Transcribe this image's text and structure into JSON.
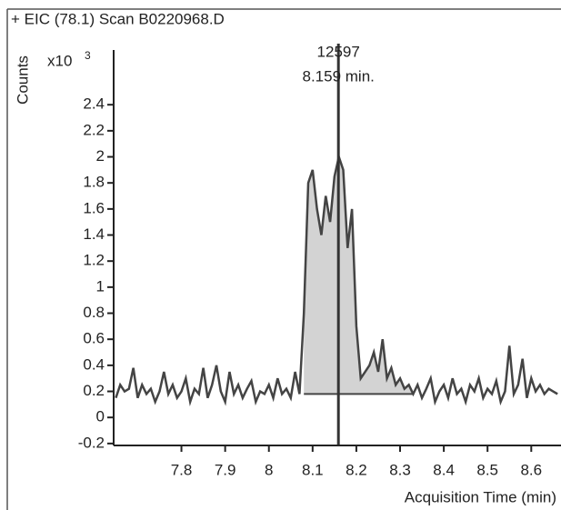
{
  "chart_data": {
    "type": "line",
    "title": "+ EIC (78.1) Scan B0220968.D",
    "y_label": "Counts",
    "y_multiplier": "x10",
    "y_multiplier_exp": "3",
    "x_label": "Acquisition Time (min)",
    "peak_annotation": {
      "counts": "12597",
      "time": "8.159 min.",
      "x": 8.159
    },
    "integration": {
      "start": 8.08,
      "end": 8.33,
      "baseline": 0.18
    },
    "color": "#444444",
    "fill_color": "#d3d3d3",
    "xlim": [
      7.645,
      8.668
    ],
    "ylim": [
      -0.215,
      2.82
    ],
    "xticks": [
      7.8,
      7.9,
      8,
      8.1,
      8.2,
      8.3,
      8.4,
      8.5,
      8.6
    ],
    "yticks": [
      -0.2,
      0,
      0.2,
      0.4,
      0.6,
      0.8,
      1,
      1.2,
      1.4,
      1.6,
      1.8,
      2,
      2.2,
      2.4
    ],
    "x": [
      7.65,
      7.66,
      7.67,
      7.68,
      7.69,
      7.7,
      7.71,
      7.72,
      7.73,
      7.74,
      7.75,
      7.76,
      7.77,
      7.78,
      7.79,
      7.8,
      7.81,
      7.82,
      7.83,
      7.84,
      7.85,
      7.86,
      7.87,
      7.88,
      7.89,
      7.9,
      7.91,
      7.92,
      7.93,
      7.94,
      7.95,
      7.96,
      7.97,
      7.98,
      7.99,
      8.0,
      8.01,
      8.02,
      8.03,
      8.04,
      8.05,
      8.06,
      8.07,
      8.08,
      8.09,
      8.1,
      8.11,
      8.12,
      8.13,
      8.14,
      8.15,
      8.16,
      8.17,
      8.18,
      8.19,
      8.2,
      8.21,
      8.22,
      8.23,
      8.24,
      8.25,
      8.26,
      8.27,
      8.28,
      8.29,
      8.3,
      8.31,
      8.32,
      8.33,
      8.34,
      8.35,
      8.36,
      8.37,
      8.38,
      8.39,
      8.4,
      8.41,
      8.42,
      8.43,
      8.44,
      8.45,
      8.46,
      8.47,
      8.48,
      8.49,
      8.5,
      8.51,
      8.52,
      8.53,
      8.54,
      8.55,
      8.56,
      8.57,
      8.58,
      8.59,
      8.6,
      8.61,
      8.62,
      8.63,
      8.64,
      8.65,
      8.66
    ],
    "values": [
      0.15,
      0.25,
      0.2,
      0.22,
      0.38,
      0.15,
      0.25,
      0.18,
      0.22,
      0.12,
      0.2,
      0.35,
      0.18,
      0.25,
      0.15,
      0.2,
      0.3,
      0.12,
      0.22,
      0.18,
      0.38,
      0.15,
      0.25,
      0.4,
      0.2,
      0.12,
      0.35,
      0.18,
      0.25,
      0.15,
      0.22,
      0.28,
      0.12,
      0.2,
      0.18,
      0.25,
      0.15,
      0.3,
      0.18,
      0.22,
      0.15,
      0.35,
      0.18,
      0.8,
      1.8,
      1.9,
      1.6,
      1.4,
      1.7,
      1.5,
      1.85,
      2.0,
      1.9,
      1.3,
      1.6,
      0.7,
      0.3,
      0.35,
      0.4,
      0.5,
      0.35,
      0.6,
      0.3,
      0.38,
      0.25,
      0.3,
      0.22,
      0.25,
      0.18,
      0.25,
      0.15,
      0.22,
      0.3,
      0.12,
      0.2,
      0.25,
      0.15,
      0.3,
      0.18,
      0.22,
      0.12,
      0.25,
      0.2,
      0.3,
      0.15,
      0.22,
      0.18,
      0.28,
      0.12,
      0.2,
      0.55,
      0.18,
      0.25,
      0.45,
      0.15,
      0.3,
      0.2,
      0.25,
      0.18,
      0.22,
      0.2,
      0.18
    ]
  }
}
